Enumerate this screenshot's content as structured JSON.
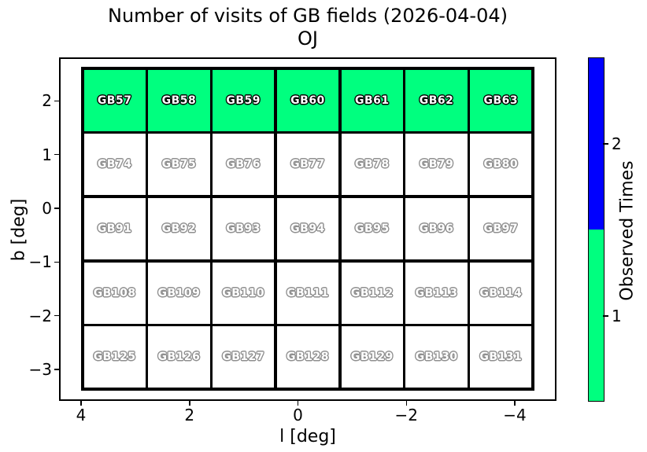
{
  "title": {
    "line1": "Number of visits of GB fields (2026-04-04)",
    "line2": "OJ"
  },
  "x_axis": {
    "label": "l [deg]",
    "ticks": [
      "4",
      "2",
      "0",
      "−2",
      "−4"
    ]
  },
  "y_axis": {
    "label": "b [deg]",
    "ticks": [
      "2",
      "1",
      "0",
      "−1",
      "−2",
      "−3"
    ]
  },
  "colorbar": {
    "label": "Observed Times",
    "tick_labels": [
      "2",
      "1"
    ],
    "color_observed_1": "#00FF7F",
    "color_observed_2": "#0000FF"
  },
  "grid": {
    "rows": [
      {
        "observed": 1,
        "cells": [
          "GB57",
          "GB58",
          "GB59",
          "GB60",
          "GB61",
          "GB62",
          "GB63"
        ]
      },
      {
        "observed": 0,
        "cells": [
          "GB74",
          "GB75",
          "GB76",
          "GB77",
          "GB78",
          "GB79",
          "GB80"
        ]
      },
      {
        "observed": 0,
        "cells": [
          "GB91",
          "GB92",
          "GB93",
          "GB94",
          "GB95",
          "GB96",
          "GB97"
        ]
      },
      {
        "observed": 0,
        "cells": [
          "GB108",
          "GB109",
          "GB110",
          "GB111",
          "GB112",
          "GB113",
          "GB114"
        ]
      },
      {
        "observed": 0,
        "cells": [
          "GB125",
          "GB126",
          "GB127",
          "GB128",
          "GB129",
          "GB130",
          "GB131"
        ]
      }
    ]
  },
  "chart_data": {
    "type": "heatmap",
    "title": "Number of visits of GB fields (2026-04-04)",
    "subtitle": "OJ",
    "xlabel": "l [deg]",
    "ylabel": "b [deg]",
    "x_ticks": [
      4,
      2,
      0,
      -2,
      -4
    ],
    "y_ticks": [
      2,
      1,
      0,
      -1,
      -2,
      -3
    ],
    "xlim": [
      4.4,
      -4.8
    ],
    "ylim": [
      -3.6,
      2.8
    ],
    "x_axis_inverted": true,
    "field_size_deg": 1.2,
    "columns_l_centers": [
      3.4,
      2.2,
      1.0,
      -0.2,
      -1.4,
      -2.6,
      -3.8
    ],
    "rows_b_centers": [
      2.04,
      0.84,
      -0.36,
      -1.56,
      -2.76
    ],
    "series": [
      {
        "name": "row_b_2.04",
        "fields": [
          "GB57",
          "GB58",
          "GB59",
          "GB60",
          "GB61",
          "GB62",
          "GB63"
        ],
        "visits": [
          1,
          1,
          1,
          1,
          1,
          1,
          1
        ]
      },
      {
        "name": "row_b_0.84",
        "fields": [
          "GB74",
          "GB75",
          "GB76",
          "GB77",
          "GB78",
          "GB79",
          "GB80"
        ],
        "visits": [
          0,
          0,
          0,
          0,
          0,
          0,
          0
        ]
      },
      {
        "name": "row_b_-0.36",
        "fields": [
          "GB91",
          "GB92",
          "GB93",
          "GB94",
          "GB95",
          "GB96",
          "GB97"
        ],
        "visits": [
          0,
          0,
          0,
          0,
          0,
          0,
          0
        ]
      },
      {
        "name": "row_b_-1.56",
        "fields": [
          "GB108",
          "GB109",
          "GB110",
          "GB111",
          "GB112",
          "GB113",
          "GB114"
        ],
        "visits": [
          0,
          0,
          0,
          0,
          0,
          0,
          0
        ]
      },
      {
        "name": "row_b_-2.76",
        "fields": [
          "GB125",
          "GB126",
          "GB127",
          "GB128",
          "GB129",
          "GB130",
          "GB131"
        ],
        "visits": [
          0,
          0,
          0,
          0,
          0,
          0,
          0
        ]
      }
    ],
    "colorbar": {
      "label": "Observed Times",
      "range": [
        0.5,
        2.5
      ],
      "ticks": [
        1,
        2
      ],
      "colors": {
        "1": "#00FF7F",
        "2": "#0000FF"
      }
    },
    "grid_on": false,
    "legend_position": "colorbar-right"
  }
}
